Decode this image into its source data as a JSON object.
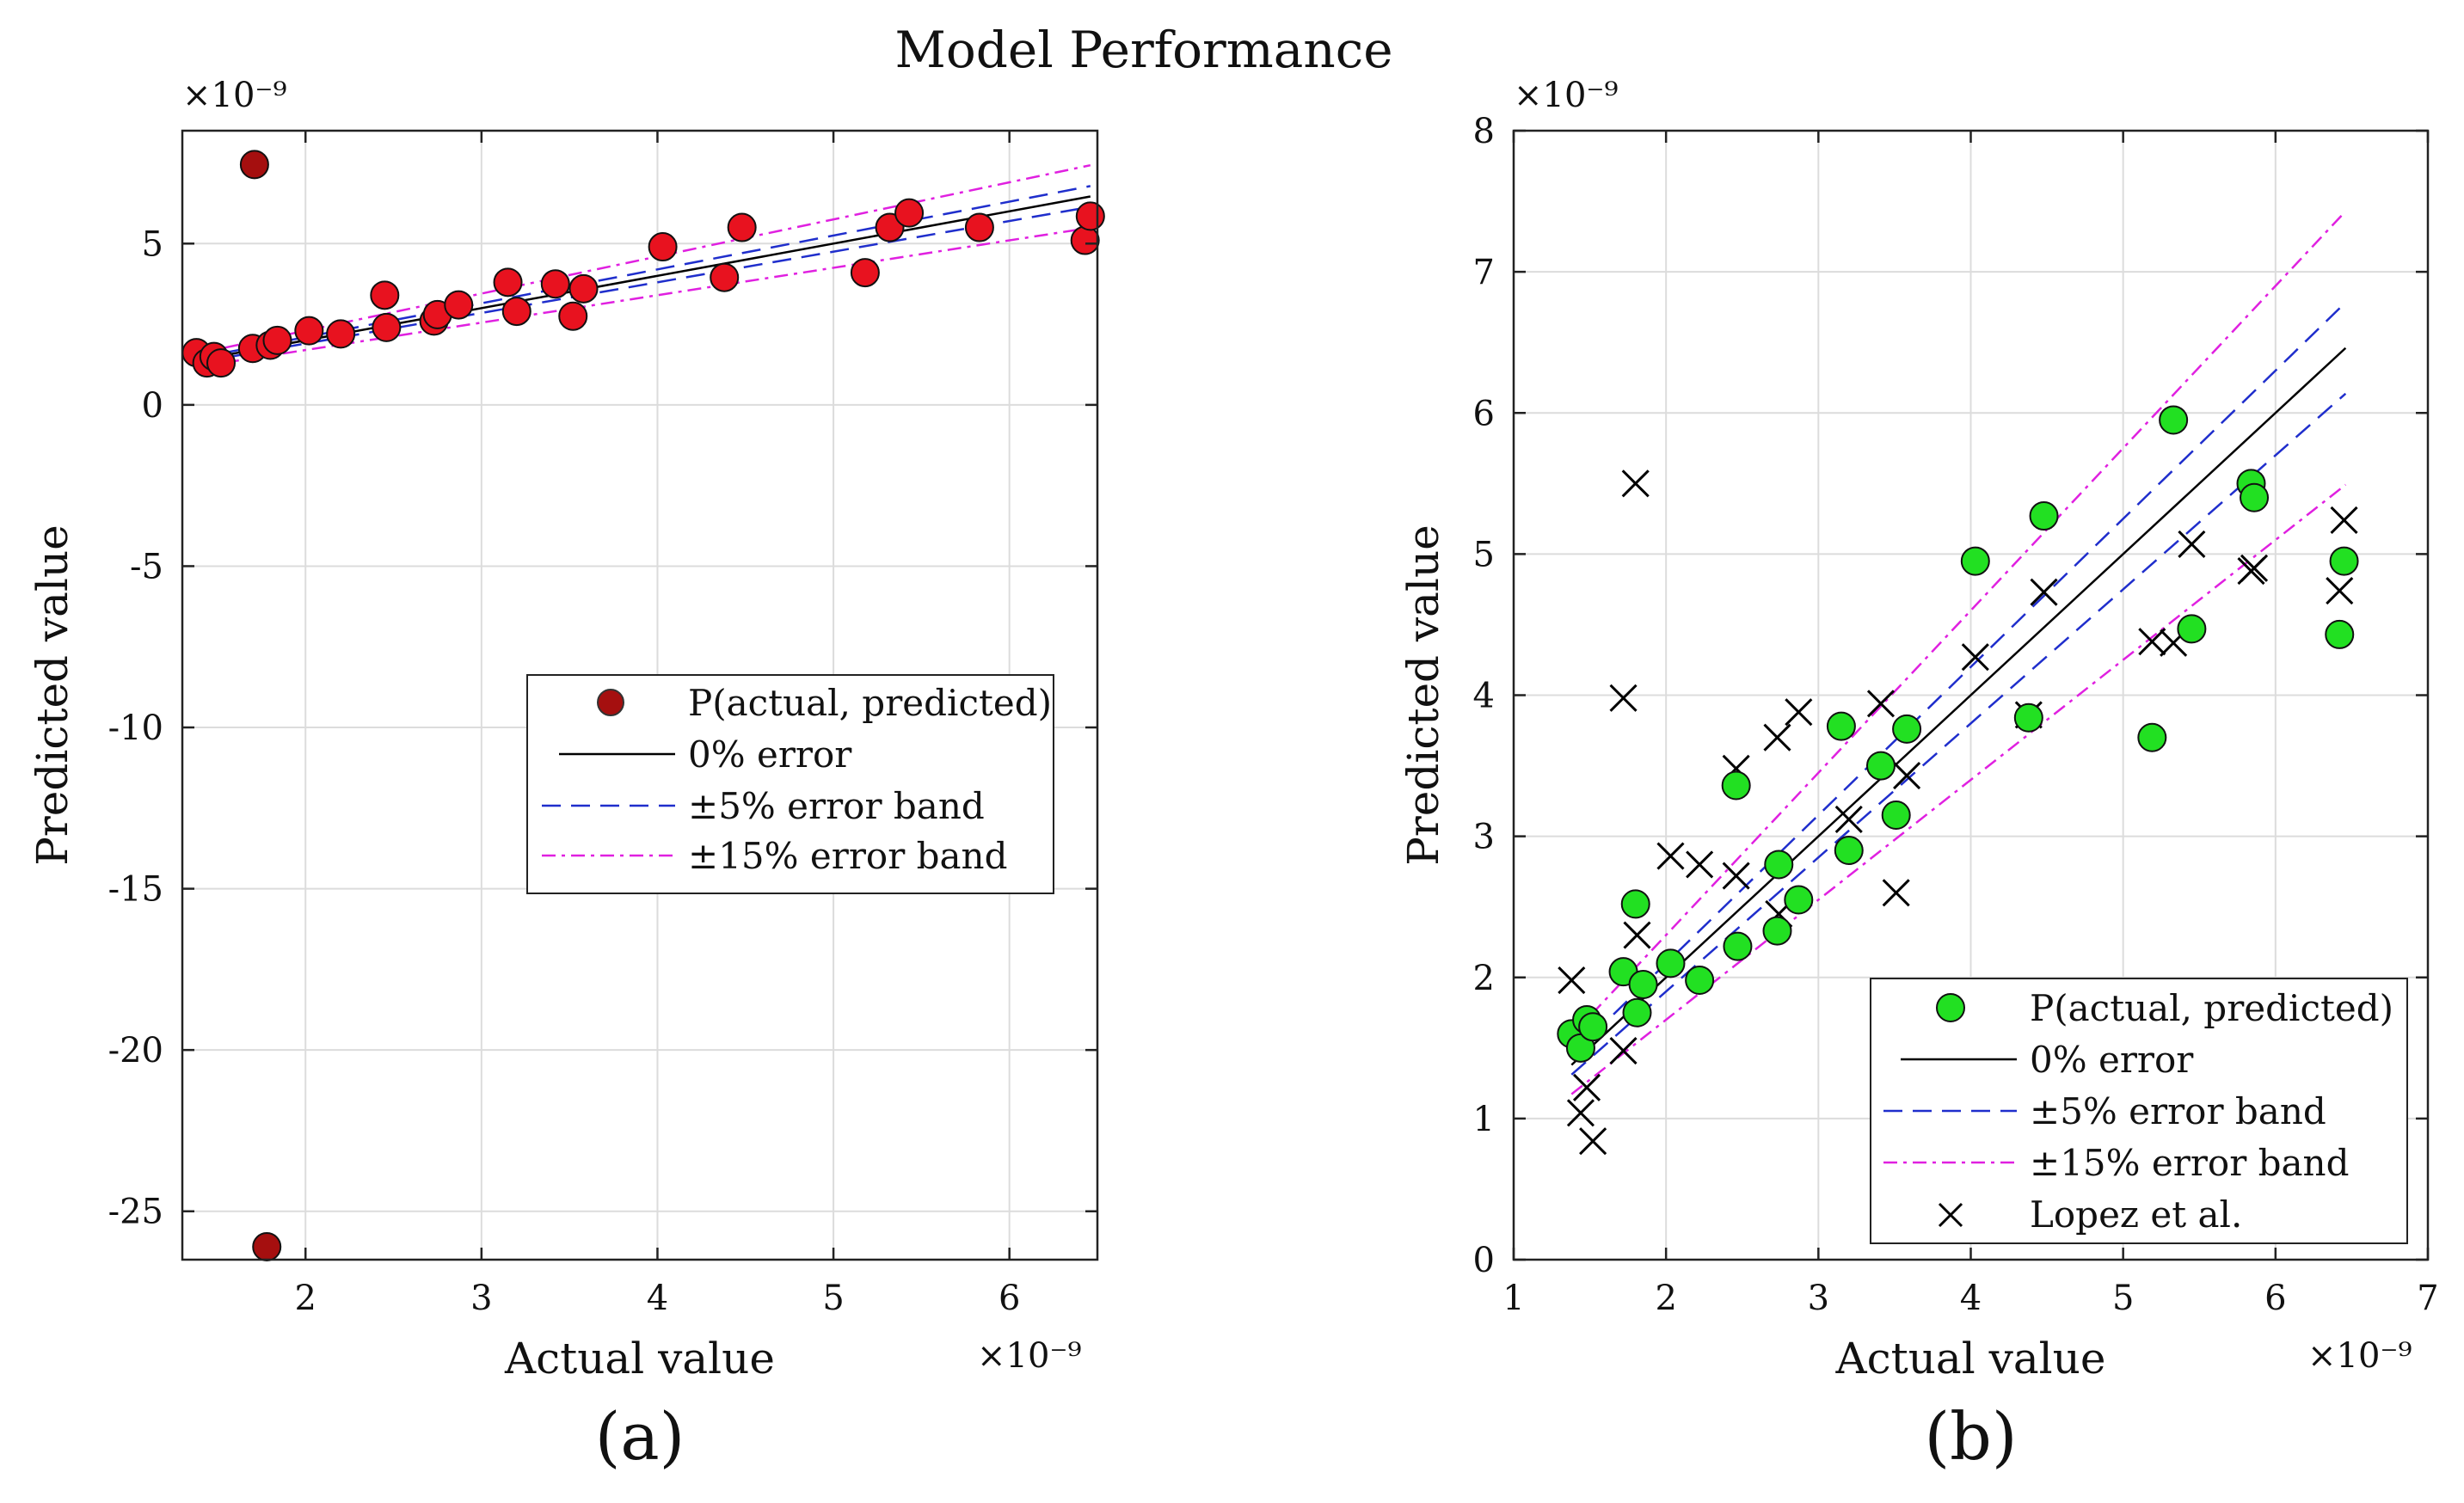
{
  "title": "Model Performance",
  "chart_data": [
    {
      "type": "scatter",
      "panel_label": "(a)",
      "xlabel": "Actual value",
      "ylabel": "Predicted value",
      "x_exponent": "×10⁻⁹",
      "y_exponent": "×10⁻⁹",
      "xlim": [
        1.3,
        6.5
      ],
      "ylim": [
        -26.5,
        8.5
      ],
      "xticks": [
        2,
        3,
        4,
        5,
        6
      ],
      "yticks": [
        5,
        0,
        -5,
        -10,
        -15,
        -20,
        -25
      ],
      "grid": true,
      "legend_position": "center-right",
      "legend": {
        "points": "P(actual, predicted)",
        "zero": "0% error",
        "band5": "±5% error band",
        "band15": "±15% error band"
      },
      "colors": {
        "points": "#e8121f",
        "legend_marker": "#a50f0f",
        "zero": "#000000",
        "band5": "#1f2ecc",
        "band15": "#e020e0"
      },
      "points": [
        {
          "x": 1.38,
          "y": 1.62
        },
        {
          "x": 1.44,
          "y": 1.3
        },
        {
          "x": 1.48,
          "y": 1.5
        },
        {
          "x": 1.52,
          "y": 1.3
        },
        {
          "x": 1.7,
          "y": 1.75
        },
        {
          "x": 1.8,
          "y": 1.85
        },
        {
          "x": 1.84,
          "y": 2.0
        },
        {
          "x": 2.02,
          "y": 2.3
        },
        {
          "x": 2.2,
          "y": 2.2
        },
        {
          "x": 2.45,
          "y": 3.4
        },
        {
          "x": 2.46,
          "y": 2.4
        },
        {
          "x": 2.73,
          "y": 2.6
        },
        {
          "x": 2.75,
          "y": 2.8
        },
        {
          "x": 2.87,
          "y": 3.1
        },
        {
          "x": 3.15,
          "y": 3.8
        },
        {
          "x": 3.2,
          "y": 2.9
        },
        {
          "x": 3.42,
          "y": 3.75
        },
        {
          "x": 3.52,
          "y": 2.75
        },
        {
          "x": 3.58,
          "y": 3.6
        },
        {
          "x": 4.03,
          "y": 4.9
        },
        {
          "x": 4.38,
          "y": 3.95
        },
        {
          "x": 4.48,
          "y": 5.5
        },
        {
          "x": 5.18,
          "y": 4.1
        },
        {
          "x": 5.32,
          "y": 5.5
        },
        {
          "x": 5.43,
          "y": 5.95
        },
        {
          "x": 5.83,
          "y": 5.5
        },
        {
          "x": 6.43,
          "y": 5.1
        },
        {
          "x": 6.46,
          "y": 5.85
        },
        {
          "x": 1.71,
          "y": 7.45
        },
        {
          "x": 1.78,
          "y": -26.1
        }
      ],
      "lines": {
        "x_start": 1.38,
        "x_end": 6.46
      }
    },
    {
      "type": "scatter",
      "panel_label": "(b)",
      "xlabel": "Actual value",
      "ylabel": "Predicted value",
      "x_exponent": "×10⁻⁹",
      "y_exponent": "×10⁻⁹",
      "xlim": [
        1,
        7
      ],
      "ylim": [
        0,
        8
      ],
      "xticks": [
        1,
        2,
        3,
        4,
        5,
        6,
        7
      ],
      "yticks": [
        0,
        1,
        2,
        3,
        4,
        5,
        6,
        7,
        8
      ],
      "grid": true,
      "legend_position": "bottom-right",
      "legend": {
        "points": "P(actual, predicted)",
        "zero": "0% error",
        "band5": "±5% error band",
        "band15": "±15% error band",
        "lopez": "Lopez et al."
      },
      "colors": {
        "points": "#22e022",
        "zero": "#000000",
        "band5": "#1f2ecc",
        "band15": "#e020e0",
        "lopez": "#000000"
      },
      "points": [
        {
          "x": 1.38,
          "y": 1.6
        },
        {
          "x": 1.44,
          "y": 1.5
        },
        {
          "x": 1.48,
          "y": 1.7
        },
        {
          "x": 1.52,
          "y": 1.65
        },
        {
          "x": 1.72,
          "y": 2.04
        },
        {
          "x": 1.8,
          "y": 2.52
        },
        {
          "x": 1.81,
          "y": 1.75
        },
        {
          "x": 1.85,
          "y": 1.95
        },
        {
          "x": 2.03,
          "y": 2.1
        },
        {
          "x": 2.22,
          "y": 1.98
        },
        {
          "x": 2.46,
          "y": 3.36
        },
        {
          "x": 2.47,
          "y": 2.22
        },
        {
          "x": 2.73,
          "y": 2.33
        },
        {
          "x": 2.74,
          "y": 2.8
        },
        {
          "x": 2.87,
          "y": 2.55
        },
        {
          "x": 3.15,
          "y": 3.78
        },
        {
          "x": 3.2,
          "y": 2.9
        },
        {
          "x": 3.41,
          "y": 3.5
        },
        {
          "x": 3.51,
          "y": 3.15
        },
        {
          "x": 3.58,
          "y": 3.76
        },
        {
          "x": 4.03,
          "y": 4.95
        },
        {
          "x": 4.38,
          "y": 3.84
        },
        {
          "x": 4.48,
          "y": 5.27
        },
        {
          "x": 5.19,
          "y": 3.7
        },
        {
          "x": 5.33,
          "y": 5.95
        },
        {
          "x": 5.45,
          "y": 4.47
        },
        {
          "x": 5.84,
          "y": 5.5
        },
        {
          "x": 5.86,
          "y": 5.4
        },
        {
          "x": 6.42,
          "y": 4.43
        },
        {
          "x": 6.45,
          "y": 4.95
        }
      ],
      "lopez": [
        {
          "x": 1.38,
          "y": 1.98
        },
        {
          "x": 1.44,
          "y": 1.04
        },
        {
          "x": 1.48,
          "y": 1.22
        },
        {
          "x": 1.52,
          "y": 0.84
        },
        {
          "x": 1.72,
          "y": 1.48
        },
        {
          "x": 1.72,
          "y": 3.98
        },
        {
          "x": 1.8,
          "y": 5.5
        },
        {
          "x": 1.81,
          "y": 2.3
        },
        {
          "x": 2.03,
          "y": 2.86
        },
        {
          "x": 2.22,
          "y": 2.8
        },
        {
          "x": 2.46,
          "y": 3.48
        },
        {
          "x": 2.46,
          "y": 2.72
        },
        {
          "x": 2.73,
          "y": 3.7
        },
        {
          "x": 2.74,
          "y": 2.45
        },
        {
          "x": 2.87,
          "y": 3.88
        },
        {
          "x": 3.2,
          "y": 3.12
        },
        {
          "x": 3.41,
          "y": 3.94
        },
        {
          "x": 3.51,
          "y": 2.6
        },
        {
          "x": 3.58,
          "y": 3.43
        },
        {
          "x": 4.03,
          "y": 4.27
        },
        {
          "x": 4.38,
          "y": 3.86
        },
        {
          "x": 4.48,
          "y": 4.73
        },
        {
          "x": 5.19,
          "y": 4.38
        },
        {
          "x": 5.33,
          "y": 4.37
        },
        {
          "x": 5.45,
          "y": 5.07
        },
        {
          "x": 5.84,
          "y": 4.88
        },
        {
          "x": 5.86,
          "y": 4.9
        },
        {
          "x": 6.42,
          "y": 4.74
        },
        {
          "x": 6.45,
          "y": 5.24
        }
      ],
      "lines": {
        "x_start": 1.38,
        "x_end": 6.46
      }
    }
  ]
}
